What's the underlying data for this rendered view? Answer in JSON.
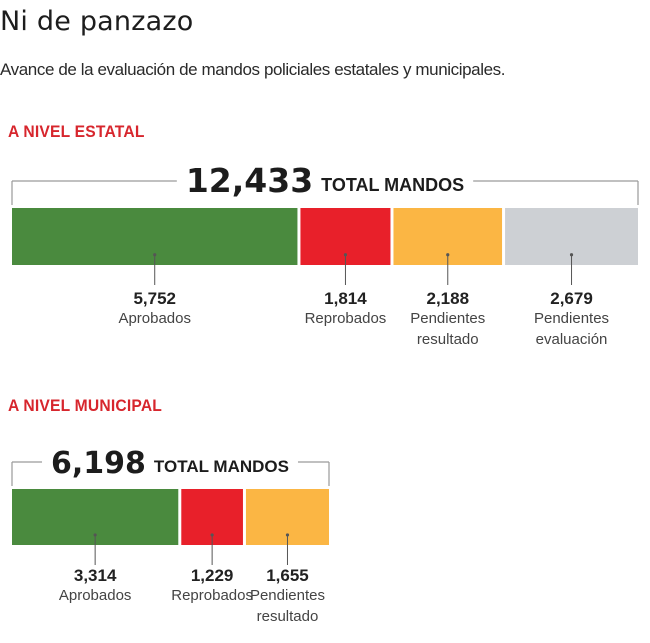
{
  "header": {
    "title": "Ni de panzazo",
    "subtitle": "Avance de la evaluación de mandos policiales estatales y municipales."
  },
  "colors": {
    "aprobados": "#4a8a3e",
    "reprobados": "#e8202a",
    "pendientes_resultado": "#fbb644",
    "pendientes_evaluacion": "#cdd0d4",
    "section_title": "#d7262d"
  },
  "chart_data": [
    {
      "type": "bar",
      "orientation": "horizontal-stacked",
      "title": "A NIVEL ESTATAL",
      "total": "12,433",
      "total_label": "TOTAL MANDOS",
      "total_value": 12433,
      "segments": [
        {
          "value": 5752,
          "value_label": "5,752",
          "label": [
            "Aprobados"
          ],
          "color_key": "aprobados"
        },
        {
          "value": 1814,
          "value_label": "1,814",
          "label": [
            "Reprobados"
          ],
          "color_key": "reprobados"
        },
        {
          "value": 2188,
          "value_label": "2,188",
          "label": [
            "Pendientes",
            "resultado"
          ],
          "color_key": "pendientes_resultado"
        },
        {
          "value": 2679,
          "value_label": "2,679",
          "label": [
            "Pendientes",
            "evaluación"
          ],
          "color_key": "pendientes_evaluacion"
        }
      ]
    },
    {
      "type": "bar",
      "orientation": "horizontal-stacked",
      "title": "A NIVEL MUNICIPAL",
      "total": "6,198",
      "total_label": "TOTAL MANDOS",
      "total_value": 6198,
      "segments": [
        {
          "value": 3314,
          "value_label": "3,314",
          "label": [
            "Aprobados"
          ],
          "color_key": "aprobados"
        },
        {
          "value": 1229,
          "value_label": "1,229",
          "label": [
            "Reprobados"
          ],
          "color_key": "reprobados"
        },
        {
          "value": 1655,
          "value_label": "1,655",
          "label": [
            "Pendientes",
            "resultado"
          ],
          "color_key": "pendientes_resultado"
        }
      ]
    }
  ]
}
